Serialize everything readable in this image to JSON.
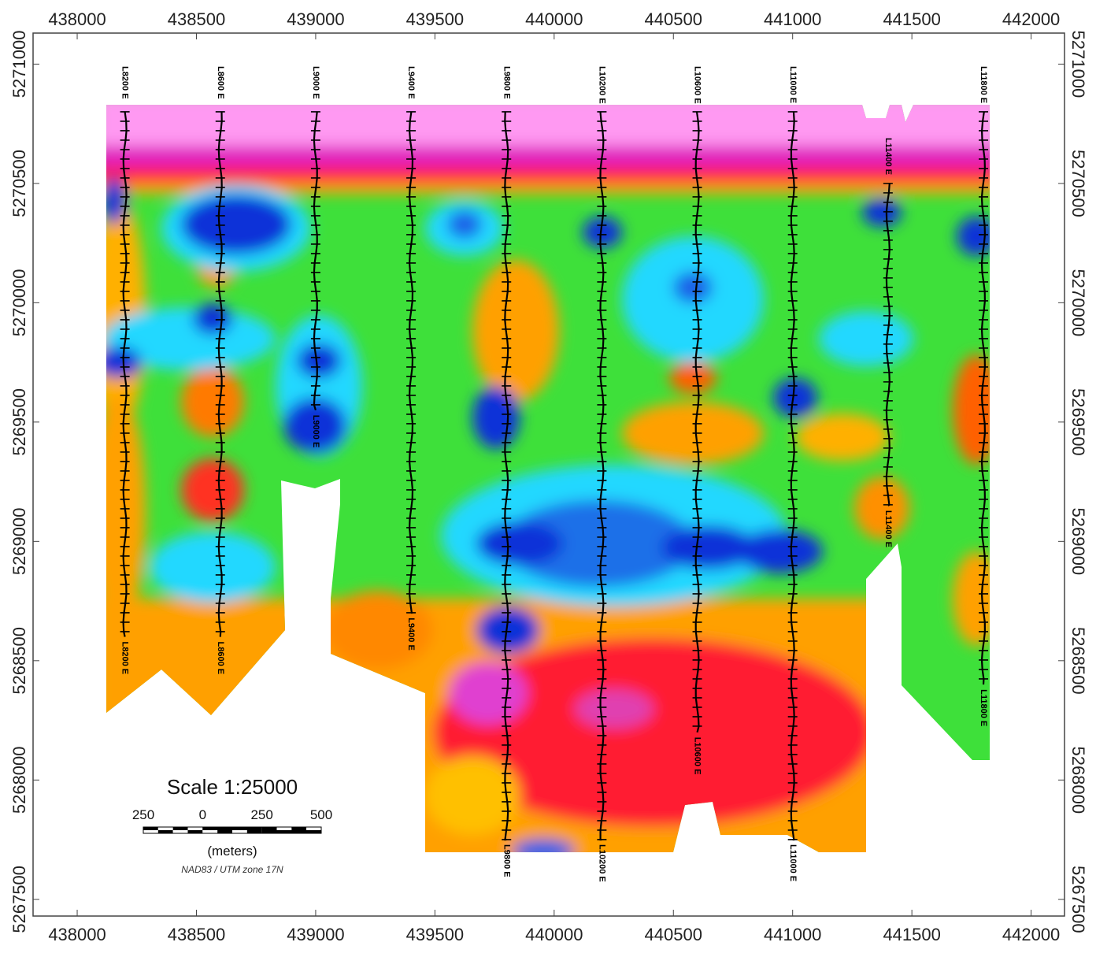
{
  "map": {
    "type": "contour-map",
    "xlim": [
      437815,
      442140
    ],
    "ylim": [
      5267430,
      5271130
    ],
    "xticks": [
      438000,
      438500,
      439000,
      439500,
      440000,
      440500,
      441000,
      441500,
      442000
    ],
    "yticks": [
      5267500,
      5268000,
      5268500,
      5269000,
      5269500,
      5270000,
      5270500,
      5271000
    ],
    "survey_lines": [
      {
        "label": "L8200 E",
        "x": 438200,
        "y": [
          5270800,
          5268600
        ]
      },
      {
        "label": "L8600 E",
        "x": 438600,
        "y": [
          5270800,
          5268600
        ]
      },
      {
        "label": "L9000 E",
        "x": 439000,
        "y": [
          5270800,
          5269550
        ]
      },
      {
        "label": "L9400 E",
        "x": 439400,
        "y": [
          5270800,
          5268700
        ]
      },
      {
        "label": "L9800 E",
        "x": 439800,
        "y": [
          5270800,
          5267750
        ]
      },
      {
        "label": "L10200 E",
        "x": 440200,
        "y": [
          5270800,
          5267750
        ]
      },
      {
        "label": "L10600 E",
        "x": 440600,
        "y": [
          5270800,
          5268200
        ]
      },
      {
        "label": "L11000 E",
        "x": 441000,
        "y": [
          5270800,
          5267750
        ]
      },
      {
        "label": "L11400 E",
        "x": 441400,
        "y": [
          5270500,
          5269150
        ]
      },
      {
        "label": "L11800 E",
        "x": 441800,
        "y": [
          5270800,
          5268400
        ]
      }
    ],
    "scale_bar": {
      "title": "Scale 1:25000",
      "labels": [
        "250",
        "0",
        "250",
        "500"
      ],
      "unit": "(meters)",
      "projection": "NAD83 / UTM zone 17N"
    }
  }
}
